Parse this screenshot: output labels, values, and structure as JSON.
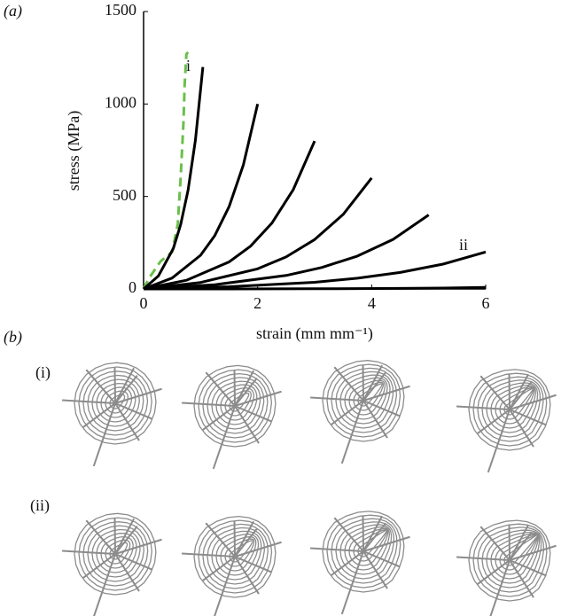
{
  "panel_labels": {
    "a": "(a)",
    "b": "(b)"
  },
  "web_rows": [
    "(i)",
    "(ii)"
  ],
  "chart_data": {
    "type": "line",
    "xlabel": "strain (mm mm⁻¹)",
    "ylabel": "stress (MPa)",
    "xlim": [
      0,
      6
    ],
    "ylim": [
      0,
      1500
    ],
    "xticks": [
      0,
      2,
      4,
      6
    ],
    "yticks": [
      0,
      500,
      1000,
      1500
    ],
    "grid": false,
    "annotations": [
      "i",
      "ii"
    ],
    "series": [
      {
        "color": "#6abf4b",
        "dashed": true,
        "x": [
          0,
          0.1,
          0.3,
          0.5,
          0.6,
          0.65,
          0.7,
          0.72,
          0.75,
          0.78
        ],
        "values": [
          0,
          60,
          150,
          200,
          350,
          600,
          900,
          1100,
          1270,
          1280
        ]
      },
      {
        "color": "#000000",
        "x": [
          0,
          0.26,
          0.52,
          0.65,
          0.78,
          0.91,
          1.04
        ],
        "values": [
          0,
          70,
          218,
          347,
          534,
          805,
          1200
        ]
      },
      {
        "color": "#000000",
        "x": [
          0,
          0.5,
          1,
          1.25,
          1.5,
          1.75,
          2
        ],
        "values": [
          0,
          59,
          182,
          289,
          445,
          671,
          1000
        ]
      },
      {
        "color": "#000000",
        "x": [
          0,
          0.75,
          1.5,
          1.875,
          2.25,
          2.625,
          3
        ],
        "values": [
          0,
          47,
          146,
          231,
          356,
          537,
          800
        ]
      },
      {
        "color": "#000000",
        "x": [
          0,
          1,
          2,
          2.5,
          3,
          3.5,
          4
        ],
        "values": [
          0,
          35,
          109,
          173,
          267,
          403,
          600
        ]
      },
      {
        "color": "#000000",
        "x": [
          0,
          1.25,
          2.5,
          3.125,
          3.75,
          4.375,
          5
        ],
        "values": [
          0,
          23,
          73,
          116,
          178,
          268,
          400
        ]
      },
      {
        "color": "#000000",
        "x": [
          0,
          1.5,
          3,
          3.75,
          4.5,
          5.25,
          6
        ],
        "values": [
          0,
          12,
          36,
          58,
          89,
          134,
          200
        ]
      },
      {
        "color": "#000000",
        "x": [
          0,
          1.5,
          3,
          3.75,
          4.5,
          5.25,
          6
        ],
        "values": [
          0,
          0,
          1,
          2,
          3,
          5,
          8
        ]
      }
    ]
  }
}
